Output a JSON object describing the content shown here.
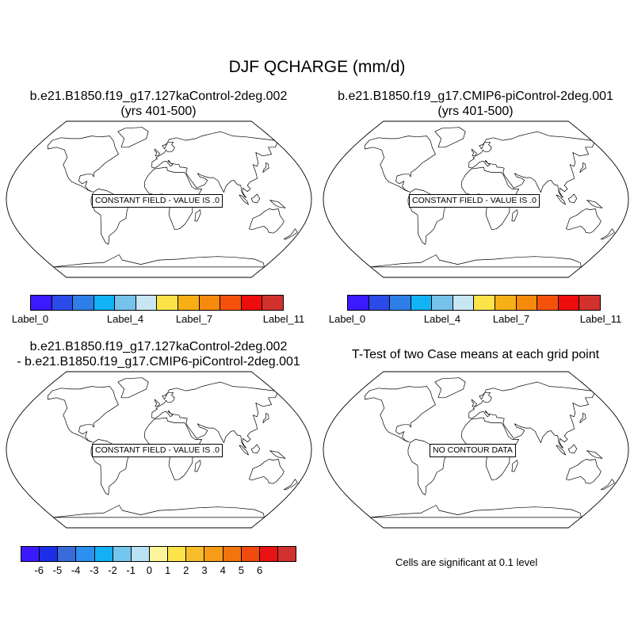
{
  "title": "DJF QCHARGE (mm/d)",
  "panels": {
    "top_left": {
      "title_line1": "b.e21.B1850.f19_g17.127kaControl-2deg.002",
      "title_line2": "(yrs 401-500)",
      "label": "CONSTANT FIELD - VALUE IS .0"
    },
    "top_right": {
      "title_line1": "b.e21.B1850.f19_g17.CMIP6-piControl-2deg.001",
      "title_line2": "(yrs 401-500)",
      "label": "CONSTANT FIELD - VALUE IS .0"
    },
    "bottom_left": {
      "title_line1": "b.e21.B1850.f19_g17.127kaControl-2deg.002",
      "title_line2": "- b.e21.B1850.f19_g17.CMIP6-piControl-2deg.001",
      "label": "CONSTANT FIELD - VALUE IS .0"
    },
    "bottom_right": {
      "title_line1": "T-Test of two Case means at each grid point",
      "label": "NO CONTOUR DATA"
    }
  },
  "colorbar_top": {
    "colors": [
      "#3c1aff",
      "#2b4be8",
      "#2f7ee8",
      "#12b2f7",
      "#76c2ea",
      "#c9e6f5",
      "#fde34a",
      "#f7af18",
      "#f68a0a",
      "#f4520c",
      "#ee0d0d",
      "#d2322d"
    ],
    "labels": [
      "Label_0",
      "Label_4",
      "Label_7",
      "Label_11"
    ]
  },
  "colorbar_bottom": {
    "colors": [
      "#3c1aff",
      "#1d2fe6",
      "#3a6cd9",
      "#2d8ff0",
      "#13b0f5",
      "#74c6ee",
      "#b9e2f4",
      "#fdf59a",
      "#fde34a",
      "#f7bd2a",
      "#f69c16",
      "#f2750b",
      "#f04a0e",
      "#e81313",
      "#d2322d"
    ],
    "labels": [
      "-6",
      "-5",
      "-4",
      "-3",
      "-2",
      "-1",
      "0",
      "1",
      "2",
      "3",
      "4",
      "5",
      "6"
    ]
  },
  "significance_note": "Cells are significant at 0.1 level"
}
